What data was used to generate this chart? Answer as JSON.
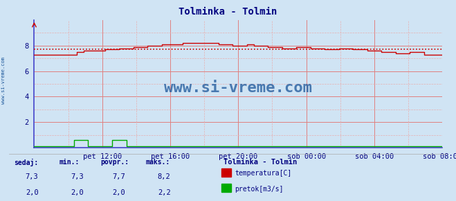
{
  "title": "Tolminka - Tolmin",
  "title_color": "#000080",
  "bg_color": "#d0e4f4",
  "plot_bg_color": "#d0e4f4",
  "grid_color_major": "#e08080",
  "grid_color_minor": "#e8b0b0",
  "ylim": [
    0,
    10.0
  ],
  "yticks": [
    2,
    4,
    6,
    8
  ],
  "xlim": [
    0,
    288
  ],
  "xtick_labels": [
    "pet 12:00",
    "pet 16:00",
    "pet 20:00",
    "sob 00:00",
    "sob 04:00",
    "sob 08:00"
  ],
  "xtick_positions": [
    48,
    96,
    144,
    192,
    240,
    288
  ],
  "avg_line_y": 7.7,
  "avg_line_color": "#cc0000",
  "temp_color": "#cc0000",
  "flow_color": "#00aa00",
  "axis_color": "#4444cc",
  "watermark": "www.si-vreme.com",
  "watermark_color": "#1a5599",
  "legend_title": "Tolminka - Tolmin",
  "legend_title_color": "#000080",
  "label_color": "#000080",
  "stats_headers": [
    "sedaj:",
    "min.:",
    "povpr.:",
    "maks.:"
  ],
  "stats_temp": [
    "7,3",
    "7,3",
    "7,7",
    "8,2"
  ],
  "stats_flow": [
    "2,0",
    "2,0",
    "2,0",
    "2,2"
  ],
  "temp_legend": "temperatura[C]",
  "flow_legend": "pretok[m3/s]",
  "minor_yticks": [
    1,
    3,
    5,
    7,
    9
  ],
  "minor_xticks": [
    24,
    72,
    120,
    168,
    216,
    264
  ]
}
